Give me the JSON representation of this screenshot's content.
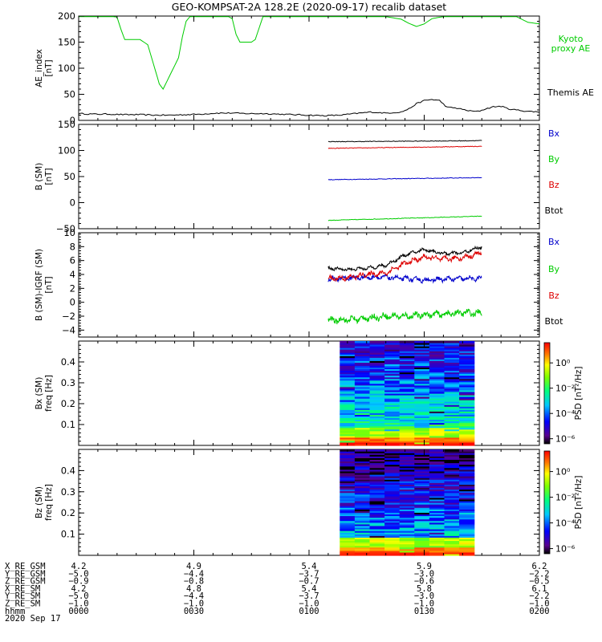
{
  "title": "GEO-KOMPSAT-2A 128.2E (2020-09-17) recalib dataset",
  "colors": {
    "ae_kyoto": "#00cc00",
    "ae_themis": "#000000",
    "bx": "#0000cc",
    "by": "#00cc00",
    "bz": "#dd0000",
    "btot": "#000000"
  },
  "chart_data": [
    {
      "type": "line",
      "panel": "AE_index",
      "ylabel": "AE_index [nT]",
      "ylabel_lines": [
        "AE_index",
        "[nT]"
      ],
      "ylim": [
        0,
        200
      ],
      "yticks": [
        0,
        50,
        100,
        150,
        200
      ],
      "xlim": [
        0,
        120
      ],
      "series": [
        {
          "name": "Kyoto proxy AE",
          "name_lines": [
            "Kyoto",
            "proxy AE"
          ],
          "color": "#00cc00",
          "x": [
            0,
            1,
            5,
            9,
            10,
            11,
            12,
            14,
            16,
            17,
            18,
            19,
            20,
            21,
            22,
            24,
            26,
            27,
            28,
            29,
            30,
            31,
            32,
            34,
            36,
            37,
            38,
            39,
            40,
            41,
            42,
            44,
            45,
            46,
            48,
            56,
            64,
            72,
            80,
            84,
            86,
            88,
            90,
            92,
            95,
            100,
            105,
            110,
            114,
            117,
            120
          ],
          "y": [
            199,
            199,
            199,
            199,
            198,
            175,
            155,
            155,
            155,
            150,
            145,
            120,
            95,
            70,
            60,
            90,
            120,
            160,
            190,
            199,
            199,
            199,
            199,
            199,
            199,
            199,
            199,
            199,
            195,
            165,
            150,
            150,
            150,
            155,
            199,
            199,
            199,
            199,
            199,
            194,
            186,
            180,
            185,
            195,
            199,
            199,
            199,
            199,
            199,
            188,
            185
          ]
        },
        {
          "name": "Themis AE",
          "name_lines": [
            "Themis AE"
          ],
          "color": "#000000",
          "x": [
            0,
            4,
            8,
            12,
            16,
            20,
            24,
            28,
            32,
            36,
            40,
            44,
            48,
            52,
            56,
            60,
            64,
            68,
            72,
            76,
            80,
            84,
            86,
            88,
            90,
            92,
            94,
            96,
            98,
            100,
            102,
            104,
            106,
            108,
            110,
            112,
            114,
            116,
            118,
            120
          ],
          "y": [
            13,
            12,
            12,
            11,
            11,
            10,
            10,
            11,
            12,
            14,
            14,
            13,
            13,
            12,
            11,
            10,
            9,
            10,
            13,
            16,
            14,
            16,
            22,
            32,
            38,
            40,
            38,
            25,
            24,
            21,
            18,
            17,
            22,
            26,
            27,
            22,
            20,
            18,
            17,
            16
          ]
        }
      ]
    },
    {
      "type": "line",
      "panel": "B_SM",
      "ylabel": "B (SM) [nT]",
      "ylabel_lines": [
        "B (SM)",
        "[nT]"
      ],
      "ylim": [
        -50,
        150
      ],
      "yticks": [
        -50,
        0,
        50,
        100,
        150
      ],
      "xlim": [
        0,
        120
      ],
      "series": [
        {
          "name": "Bx",
          "color": "#0000cc",
          "x": [
            65,
            70,
            80,
            90,
            100,
            105
          ],
          "y": [
            44,
            44.5,
            45.5,
            46.5,
            47.5,
            48
          ]
        },
        {
          "name": "By",
          "color": "#00cc00",
          "x": [
            65,
            70,
            80,
            90,
            100,
            105
          ],
          "y": [
            -34,
            -33,
            -31,
            -29,
            -27,
            -26
          ]
        },
        {
          "name": "Bz",
          "color": "#dd0000",
          "x": [
            65,
            70,
            80,
            90,
            100,
            105
          ],
          "y": [
            104,
            104.5,
            105.5,
            106.5,
            107.5,
            108
          ]
        },
        {
          "name": "Btot",
          "color": "#000000",
          "x": [
            65,
            70,
            80,
            90,
            100,
            105
          ],
          "y": [
            117,
            117,
            117.5,
            118,
            118.5,
            119
          ]
        }
      ]
    },
    {
      "type": "line",
      "panel": "B_SM_minus_IGRF",
      "ylabel": "B (SM)-IGRF (SM) [nT]",
      "ylabel_lines": [
        "B (SM)-IGRF (SM)",
        "[nT]"
      ],
      "ylim": [
        -5,
        10
      ],
      "yticks": [
        -4,
        -2,
        0,
        2,
        4,
        6,
        8,
        10
      ],
      "xlim": [
        0,
        120
      ],
      "series": [
        {
          "name": "Bx",
          "color": "#0000cc",
          "x": [
            65,
            70,
            75,
            80,
            85,
            90,
            95,
            100,
            105
          ],
          "y": [
            3.3,
            3.5,
            3.6,
            3.6,
            3.4,
            3.2,
            3.3,
            3.4,
            3.4
          ]
        },
        {
          "name": "By",
          "color": "#00cc00",
          "x": [
            65,
            70,
            75,
            80,
            85,
            90,
            95,
            100,
            105
          ],
          "y": [
            -2.6,
            -2.5,
            -2.3,
            -2.0,
            -2.0,
            -1.8,
            -1.7,
            -1.5,
            -1.6
          ]
        },
        {
          "name": "Bz",
          "color": "#dd0000",
          "x": [
            65,
            70,
            75,
            80,
            85,
            90,
            95,
            100,
            105
          ],
          "y": [
            3.4,
            3.5,
            4.0,
            4.2,
            5.6,
            6.5,
            6.2,
            6.4,
            7.1
          ]
        },
        {
          "name": "Btot",
          "color": "#000000",
          "x": [
            65,
            70,
            75,
            80,
            85,
            90,
            95,
            100,
            105
          ],
          "y": [
            4.9,
            4.7,
            4.9,
            5.3,
            6.8,
            7.6,
            7.0,
            7.1,
            8.0
          ]
        }
      ]
    },
    {
      "type": "heatmap",
      "panel": "Bx_SM_spectrogram",
      "ylabel": "Bx (SM) freq [Hz]",
      "ylabel_lines": [
        "Bx (SM)",
        "freq [Hz]"
      ],
      "ylim": [
        0,
        0.5
      ],
      "yticks": [
        0.1,
        0.2,
        0.3,
        0.4
      ],
      "x_range": [
        68,
        103
      ],
      "colorbar": {
        "label": "PSD [nT²/Hz]",
        "scale": "log",
        "ticks": [
          "10⁰",
          "10⁻²",
          "10⁻⁴",
          "10⁻⁶"
        ]
      }
    },
    {
      "type": "heatmap",
      "panel": "Bz_SM_spectrogram",
      "ylabel": "Bz (SM) freq [Hz]",
      "ylabel_lines": [
        "Bz (SM)",
        "freq [Hz]"
      ],
      "ylim": [
        0,
        0.5
      ],
      "yticks": [
        0.1,
        0.2,
        0.3,
        0.4
      ],
      "x_range": [
        68,
        103
      ],
      "colorbar": {
        "label": "PSD [nT²/Hz]",
        "scale": "log",
        "ticks": [
          "10⁰",
          "10⁻²",
          "10⁻⁴",
          "10⁻⁶"
        ]
      }
    }
  ],
  "orbit_table": {
    "row_labels": [
      "X_RE_GSM",
      "Y_RE_GSM",
      "Z_RE_GSM",
      "X_RE_SM",
      "Y_RE_SM",
      "Z_RE_SM",
      "hhmm"
    ],
    "columns": [
      {
        "minute": 0,
        "values": [
          "4.2",
          "−5.0",
          "−0.9",
          "4.2",
          "−5.0",
          "−1.0",
          "0000"
        ]
      },
      {
        "minute": 30,
        "values": [
          "4.9",
          "−4.4",
          "−0.8",
          "4.8",
          "−4.4",
          "−1.0",
          "0030"
        ]
      },
      {
        "minute": 60,
        "values": [
          "5.4",
          "−3.7",
          "−0.7",
          "5.4",
          "−3.7",
          "−1.0",
          "0100"
        ]
      },
      {
        "minute": 90,
        "values": [
          "5.9",
          "−3.0",
          "−0.6",
          "5.8",
          "−3.0",
          "−1.0",
          "0130"
        ]
      },
      {
        "minute": 120,
        "values": [
          "6.2",
          "−2.2",
          "−0.5",
          "6.1",
          "−2.2",
          "−1.0",
          "0200"
        ]
      }
    ],
    "date": "2020 Sep 17"
  }
}
